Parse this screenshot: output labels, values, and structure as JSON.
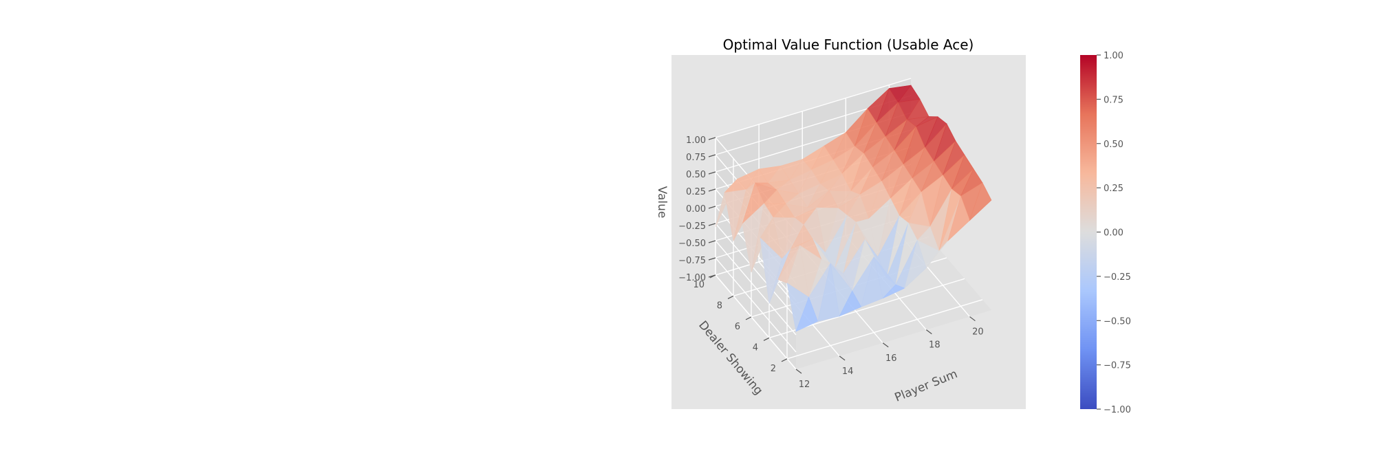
{
  "chart_data": {
    "type": "surface",
    "title": "Optimal Value Function (Usable Ace)",
    "xlabel": "Player Sum",
    "ylabel": "Dealer Showing",
    "zlabel": "Value",
    "colormap": "coolwarm",
    "colormap_colors": [
      "#3b4cc0",
      "#6f92f3",
      "#aac7fd",
      "#dddddd",
      "#f7b89c",
      "#e7745b",
      "#b40426"
    ],
    "x_ticks": [
      "12",
      "14",
      "16",
      "18",
      "20"
    ],
    "y_ticks": [
      "2",
      "4",
      "6",
      "8",
      "10"
    ],
    "z_ticks": [
      "−1.00",
      "−0.75",
      "−0.50",
      "−0.25",
      "0.00",
      "0.25",
      "0.50",
      "0.75",
      "1.00"
    ],
    "colorbar_ticks": [
      "−1.00",
      "−0.75",
      "−0.50",
      "−0.25",
      "0.00",
      "0.25",
      "0.50",
      "0.75",
      "1.00"
    ],
    "xlim": [
      12,
      21
    ],
    "ylim": [
      1,
      10
    ],
    "zlim": [
      -1,
      1
    ],
    "x": [
      12,
      13,
      14,
      15,
      16,
      17,
      18,
      19,
      20,
      21
    ],
    "y": [
      1,
      2,
      3,
      4,
      5,
      6,
      7,
      8,
      9,
      10
    ],
    "z": [
      [
        -0.45,
        -0.4,
        -0.42,
        -0.38,
        -0.35,
        -0.3,
        -0.1,
        0.2,
        0.4,
        0.6
      ],
      [
        0.1,
        -0.2,
        0.2,
        -0.3,
        0.1,
        -0.4,
        0.15,
        -0.1,
        0.6,
        0.7
      ],
      [
        0.0,
        0.4,
        0.1,
        -0.2,
        0.2,
        -0.45,
        0.25,
        0.1,
        0.55,
        0.75
      ],
      [
        -0.5,
        0.2,
        0.25,
        -0.3,
        0.3,
        -0.3,
        0.2,
        0.45,
        0.6,
        0.8
      ],
      [
        0.3,
        -0.1,
        0.3,
        -0.2,
        0.25,
        0.1,
        0.3,
        0.5,
        0.65,
        0.85
      ],
      [
        -0.35,
        0.35,
        0.25,
        0.3,
        0.2,
        0.3,
        0.4,
        0.55,
        0.7,
        0.95
      ],
      [
        0.2,
        0.4,
        0.3,
        0.15,
        0.3,
        0.2,
        0.45,
        0.6,
        0.85,
        0.9
      ],
      [
        -0.2,
        0.55,
        0.35,
        0.2,
        0.25,
        0.3,
        0.5,
        0.65,
        0.8,
        0.75
      ],
      [
        0.35,
        0.3,
        0.3,
        0.25,
        0.3,
        0.35,
        0.45,
        0.7,
        0.9,
        0.85
      ],
      [
        -0.3,
        0.3,
        0.35,
        0.3,
        0.3,
        0.4,
        0.5,
        0.75,
        0.95,
        0.9
      ]
    ]
  }
}
